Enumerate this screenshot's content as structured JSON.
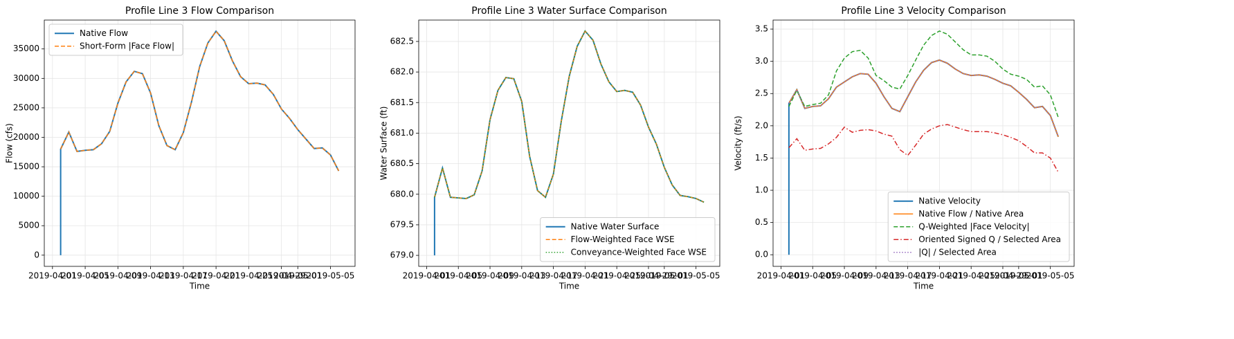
{
  "chart_data": [
    {
      "type": "line",
      "title": "Profile Line 3 Flow Comparison",
      "xlabel": "Time",
      "ylabel": "Flow (cfs)",
      "x": [
        "2019-04-02",
        "2019-04-02",
        "2019-04-03",
        "2019-04-04",
        "2019-04-05",
        "2019-04-06",
        "2019-04-07",
        "2019-04-08",
        "2019-04-09",
        "2019-04-10",
        "2019-04-11",
        "2019-04-12",
        "2019-04-13",
        "2019-04-14",
        "2019-04-15",
        "2019-04-16",
        "2019-04-17",
        "2019-04-18",
        "2019-04-19",
        "2019-04-20",
        "2019-04-21",
        "2019-04-22",
        "2019-04-23",
        "2019-04-24",
        "2019-04-25",
        "2019-04-26",
        "2019-04-27",
        "2019-04-28",
        "2019-04-29",
        "2019-04-30",
        "2019-05-01",
        "2019-05-02",
        "2019-05-03",
        "2019-05-04",
        "2019-05-05",
        "2019-05-06"
      ],
      "series": [
        {
          "name": "Native Flow",
          "color": "#1f77b4",
          "dash": "solid",
          "values": [
            0,
            18000,
            20900,
            17600,
            17800,
            17900,
            18900,
            21000,
            25800,
            29400,
            31200,
            30800,
            27500,
            22000,
            18600,
            17900,
            20800,
            26000,
            32000,
            36000,
            38000,
            36400,
            33000,
            30300,
            29100,
            29200,
            28900,
            27300,
            24800,
            23200,
            21300,
            19700,
            18100,
            18200,
            17000,
            14300
          ]
        },
        {
          "name": "Short-Form |Face Flow|",
          "color": "#ff7f0e",
          "dash": "dashed",
          "values": [
            null,
            18000,
            20900,
            17600,
            17800,
            17900,
            18900,
            21000,
            25800,
            29400,
            31200,
            30800,
            27500,
            22000,
            18600,
            17900,
            20800,
            26000,
            32000,
            36000,
            38000,
            36400,
            33000,
            30300,
            29100,
            29200,
            28900,
            27300,
            24800,
            23200,
            21300,
            19700,
            18100,
            18200,
            17000,
            14300
          ]
        }
      ],
      "xlim": [
        "2019-03-31",
        "2019-05-08"
      ],
      "xticks": [
        "2019-04-01",
        "2019-04-05",
        "2019-04-09",
        "2019-04-13",
        "2019-04-17",
        "2019-04-21",
        "2019-04-25",
        "2019-04-29",
        "2019-05-01",
        "2019-05-05"
      ],
      "ylim": [
        -1900,
        39900
      ],
      "yticks": [
        0,
        5000,
        10000,
        15000,
        20000,
        25000,
        30000,
        35000
      ],
      "grid": true,
      "legend": "upper left"
    },
    {
      "type": "line",
      "title": "Profile Line 3 Water Surface Comparison",
      "xlabel": "Time",
      "ylabel": "Water Surface (ft)",
      "x": [
        "2019-04-02",
        "2019-04-02",
        "2019-04-03",
        "2019-04-04",
        "2019-04-05",
        "2019-04-06",
        "2019-04-07",
        "2019-04-08",
        "2019-04-09",
        "2019-04-10",
        "2019-04-11",
        "2019-04-12",
        "2019-04-13",
        "2019-04-14",
        "2019-04-15",
        "2019-04-16",
        "2019-04-17",
        "2019-04-18",
        "2019-04-19",
        "2019-04-20",
        "2019-04-21",
        "2019-04-22",
        "2019-04-23",
        "2019-04-24",
        "2019-04-25",
        "2019-04-26",
        "2019-04-27",
        "2019-04-28",
        "2019-04-29",
        "2019-04-30",
        "2019-05-01",
        "2019-05-02",
        "2019-05-03",
        "2019-05-04",
        "2019-05-05",
        "2019-05-06"
      ],
      "series": [
        {
          "name": "Native Water Surface",
          "color": "#1f77b4",
          "dash": "solid",
          "values": [
            679.0,
            679.95,
            680.43,
            679.95,
            679.94,
            679.93,
            679.99,
            680.38,
            681.22,
            681.7,
            681.91,
            681.89,
            681.52,
            680.62,
            680.06,
            679.95,
            680.33,
            681.2,
            681.93,
            682.42,
            682.67,
            682.52,
            682.13,
            681.84,
            681.68,
            681.7,
            681.67,
            681.46,
            681.1,
            680.82,
            680.44,
            680.15,
            679.98,
            679.96,
            679.93,
            679.87
          ]
        },
        {
          "name": "Flow-Weighted Face WSE",
          "color": "#ff7f0e",
          "dash": "dashed",
          "values": [
            null,
            679.95,
            680.43,
            679.95,
            679.94,
            679.93,
            679.99,
            680.38,
            681.22,
            681.7,
            681.91,
            681.89,
            681.52,
            680.62,
            680.06,
            679.95,
            680.33,
            681.2,
            681.93,
            682.42,
            682.67,
            682.52,
            682.13,
            681.84,
            681.68,
            681.7,
            681.67,
            681.46,
            681.1,
            680.82,
            680.44,
            680.15,
            679.98,
            679.96,
            679.93,
            679.87
          ]
        },
        {
          "name": "Conveyance-Weighted Face WSE",
          "color": "#2ca02c",
          "dash": "dotted",
          "values": [
            null,
            679.95,
            680.43,
            679.95,
            679.94,
            679.93,
            679.99,
            680.38,
            681.22,
            681.7,
            681.91,
            681.89,
            681.52,
            680.62,
            680.06,
            679.95,
            680.33,
            681.2,
            681.93,
            682.42,
            682.67,
            682.52,
            682.13,
            681.84,
            681.68,
            681.7,
            681.67,
            681.46,
            681.1,
            680.82,
            680.44,
            680.15,
            679.98,
            679.96,
            679.93,
            679.87
          ]
        }
      ],
      "xlim": [
        "2019-03-31",
        "2019-05-08"
      ],
      "xticks": [
        "2019-04-01",
        "2019-04-05",
        "2019-04-09",
        "2019-04-13",
        "2019-04-17",
        "2019-04-21",
        "2019-04-25",
        "2019-04-29",
        "2019-05-01",
        "2019-05-05"
      ],
      "ylim": [
        678.82,
        682.85
      ],
      "yticks": [
        {
          "value": 679,
          "label": "679.0"
        },
        679.5,
        {
          "value": 680,
          "label": "680.0"
        },
        680.5,
        {
          "value": 681,
          "label": "681.0"
        },
        681.5,
        {
          "value": 682,
          "label": "682.0"
        },
        682.5
      ],
      "grid": true,
      "legend": "lower right"
    },
    {
      "type": "line",
      "title": "Profile Line 3 Velocity Comparison",
      "xlabel": "Time",
      "ylabel": "Velocity (ft/s)",
      "x": [
        "2019-04-02",
        "2019-04-02",
        "2019-04-03",
        "2019-04-04",
        "2019-04-05",
        "2019-04-06",
        "2019-04-07",
        "2019-04-08",
        "2019-04-09",
        "2019-04-10",
        "2019-04-11",
        "2019-04-12",
        "2019-04-13",
        "2019-04-14",
        "2019-04-15",
        "2019-04-16",
        "2019-04-17",
        "2019-04-18",
        "2019-04-19",
        "2019-04-20",
        "2019-04-21",
        "2019-04-22",
        "2019-04-23",
        "2019-04-24",
        "2019-04-25",
        "2019-04-26",
        "2019-04-27",
        "2019-04-28",
        "2019-04-29",
        "2019-04-30",
        "2019-05-01",
        "2019-05-02",
        "2019-05-03",
        "2019-05-04",
        "2019-05-05",
        "2019-05-06"
      ],
      "series": [
        {
          "name": "Native Velocity",
          "color": "#1f77b4",
          "dash": "solid",
          "values": [
            0,
            2.35,
            2.56,
            2.27,
            2.3,
            2.31,
            2.42,
            2.6,
            2.68,
            2.76,
            2.81,
            2.8,
            2.66,
            2.45,
            2.27,
            2.22,
            2.45,
            2.68,
            2.86,
            2.98,
            3.02,
            2.97,
            2.88,
            2.81,
            2.78,
            2.79,
            2.77,
            2.72,
            2.66,
            2.62,
            2.52,
            2.41,
            2.28,
            2.3,
            2.16,
            1.83
          ]
        },
        {
          "name": "Native Flow / Native Area",
          "color": "#ff7f0e",
          "dash": "solid",
          "values": [
            null,
            2.35,
            2.56,
            2.27,
            2.3,
            2.31,
            2.42,
            2.6,
            2.68,
            2.76,
            2.81,
            2.8,
            2.66,
            2.45,
            2.27,
            2.22,
            2.45,
            2.68,
            2.86,
            2.98,
            3.02,
            2.97,
            2.88,
            2.81,
            2.78,
            2.79,
            2.77,
            2.72,
            2.66,
            2.62,
            2.52,
            2.41,
            2.28,
            2.3,
            2.16,
            1.83
          ]
        },
        {
          "name": "Q-Weighted |Face Velocity|",
          "color": "#2ca02c",
          "dash": "dashed",
          "values": [
            null,
            2.3,
            2.55,
            2.3,
            2.33,
            2.35,
            2.48,
            2.85,
            3.05,
            3.15,
            3.17,
            3.05,
            2.78,
            2.7,
            2.6,
            2.57,
            2.78,
            3.02,
            3.25,
            3.4,
            3.47,
            3.42,
            3.3,
            3.18,
            3.1,
            3.1,
            3.08,
            3.0,
            2.88,
            2.8,
            2.77,
            2.72,
            2.6,
            2.62,
            2.48,
            2.13
          ]
        },
        {
          "name": "Oriented Signed Q / Selected Area",
          "color": "#d62728",
          "dash": "dashdot",
          "values": [
            null,
            1.66,
            1.8,
            1.62,
            1.64,
            1.65,
            1.72,
            1.82,
            1.98,
            1.9,
            1.93,
            1.94,
            1.92,
            1.87,
            1.84,
            1.63,
            1.54,
            1.7,
            1.87,
            1.95,
            2.0,
            2.02,
            1.98,
            1.94,
            1.91,
            1.91,
            1.91,
            1.89,
            1.86,
            1.82,
            1.77,
            1.68,
            1.58,
            1.58,
            1.5,
            1.28
          ]
        },
        {
          "name": "|Q| / Selected Area",
          "color": "#9467bd",
          "dash": "dotted",
          "values": [
            null,
            2.35,
            2.56,
            2.27,
            2.3,
            2.31,
            2.42,
            2.6,
            2.68,
            2.76,
            2.81,
            2.8,
            2.66,
            2.45,
            2.27,
            2.22,
            2.45,
            2.68,
            2.86,
            2.98,
            3.02,
            2.97,
            2.88,
            2.81,
            2.78,
            2.79,
            2.77,
            2.72,
            2.66,
            2.62,
            2.52,
            2.41,
            2.28,
            2.3,
            2.16,
            1.83
          ]
        }
      ],
      "xlim": [
        "2019-03-31",
        "2019-05-08"
      ],
      "xticks": [
        "2019-04-01",
        "2019-04-05",
        "2019-04-09",
        "2019-04-13",
        "2019-04-17",
        "2019-04-21",
        "2019-04-25",
        "2019-04-29",
        "2019-05-01",
        "2019-05-05"
      ],
      "ylim": [
        -0.18,
        3.64
      ],
      "yticks": [
        {
          "value": 0,
          "label": "0.0"
        },
        0.5,
        {
          "value": 1,
          "label": "1.0"
        },
        1.5,
        {
          "value": 2,
          "label": "2.0"
        },
        2.5,
        {
          "value": 3,
          "label": "3.0"
        },
        3.5
      ],
      "grid": true,
      "legend": "lower right"
    }
  ]
}
